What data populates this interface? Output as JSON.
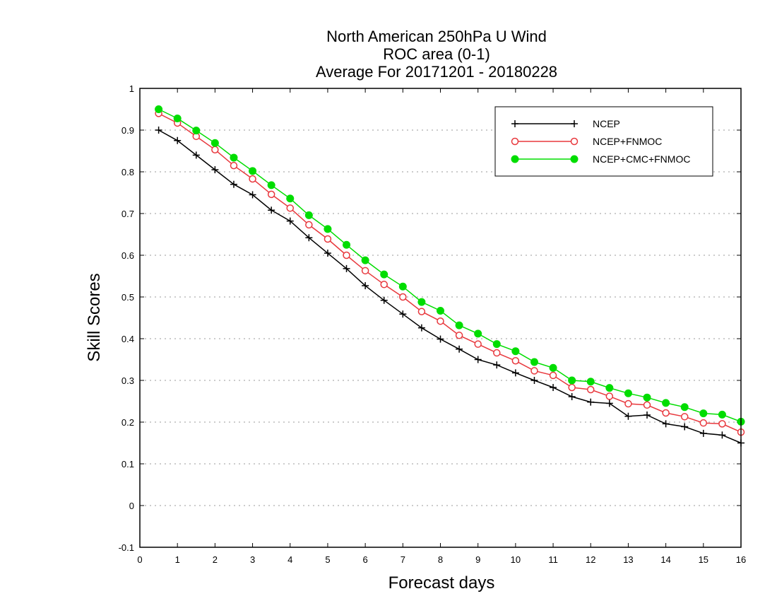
{
  "chart_data": {
    "type": "line",
    "title": [
      "North American 250hPa U Wind",
      "ROC area (0-1)",
      "Average For 20171201 - 20180228"
    ],
    "xlabel": "Forecast days",
    "ylabel": "Skill Scores",
    "xlim": [
      0,
      16
    ],
    "ylim": [
      -0.1,
      1
    ],
    "xticks": [
      0,
      1,
      2,
      3,
      4,
      5,
      6,
      7,
      8,
      9,
      10,
      11,
      12,
      13,
      14,
      15,
      16
    ],
    "yticks": [
      -0.1,
      0,
      0.1,
      0.2,
      0.3,
      0.4,
      0.5,
      0.6,
      0.7,
      0.8,
      0.9,
      1
    ],
    "ytick_labels": [
      "-0.1",
      "0",
      "0.1",
      "0.2",
      "0.3",
      "0.4",
      "0.5",
      "0.6",
      "0.7",
      "0.8",
      "0.9",
      "1"
    ],
    "grid": "horizontal dotted",
    "legend_position": "top-right",
    "x": [
      0.5,
      1,
      1.5,
      2,
      2.5,
      3,
      3.5,
      4,
      4.5,
      5,
      5.5,
      6,
      6.5,
      7,
      7.5,
      8,
      8.5,
      9,
      9.5,
      10,
      10.5,
      11,
      11.5,
      12,
      12.5,
      13,
      13.5,
      14,
      14.5,
      15,
      15.5,
      16
    ],
    "series": [
      {
        "name": "NCEP",
        "color": "#000000",
        "marker": "plus",
        "values": [
          0.9,
          0.875,
          0.84,
          0.805,
          0.77,
          0.745,
          0.708,
          0.682,
          0.642,
          0.605,
          0.568,
          0.527,
          0.492,
          0.459,
          0.426,
          0.399,
          0.375,
          0.35,
          0.337,
          0.318,
          0.3,
          0.283,
          0.261,
          0.248,
          0.245,
          0.214,
          0.217,
          0.196,
          0.189,
          0.173,
          0.169,
          0.15
        ]
      },
      {
        "name": "NCEP+FNMOC",
        "color": "#e8383d",
        "marker": "open-circle",
        "values": [
          0.94,
          0.917,
          0.885,
          0.853,
          0.815,
          0.783,
          0.746,
          0.713,
          0.673,
          0.639,
          0.6,
          0.563,
          0.53,
          0.5,
          0.465,
          0.442,
          0.408,
          0.387,
          0.366,
          0.347,
          0.323,
          0.312,
          0.283,
          0.278,
          0.262,
          0.244,
          0.241,
          0.222,
          0.213,
          0.198,
          0.196,
          0.176
        ]
      },
      {
        "name": "NCEP+CMC+FNMOC",
        "color": "#00dd00",
        "marker": "filled-circle",
        "values": [
          0.95,
          0.928,
          0.899,
          0.869,
          0.834,
          0.802,
          0.768,
          0.736,
          0.696,
          0.663,
          0.625,
          0.588,
          0.554,
          0.525,
          0.488,
          0.467,
          0.432,
          0.412,
          0.387,
          0.37,
          0.344,
          0.33,
          0.3,
          0.297,
          0.282,
          0.269,
          0.259,
          0.246,
          0.236,
          0.221,
          0.218,
          0.201
        ]
      }
    ]
  }
}
